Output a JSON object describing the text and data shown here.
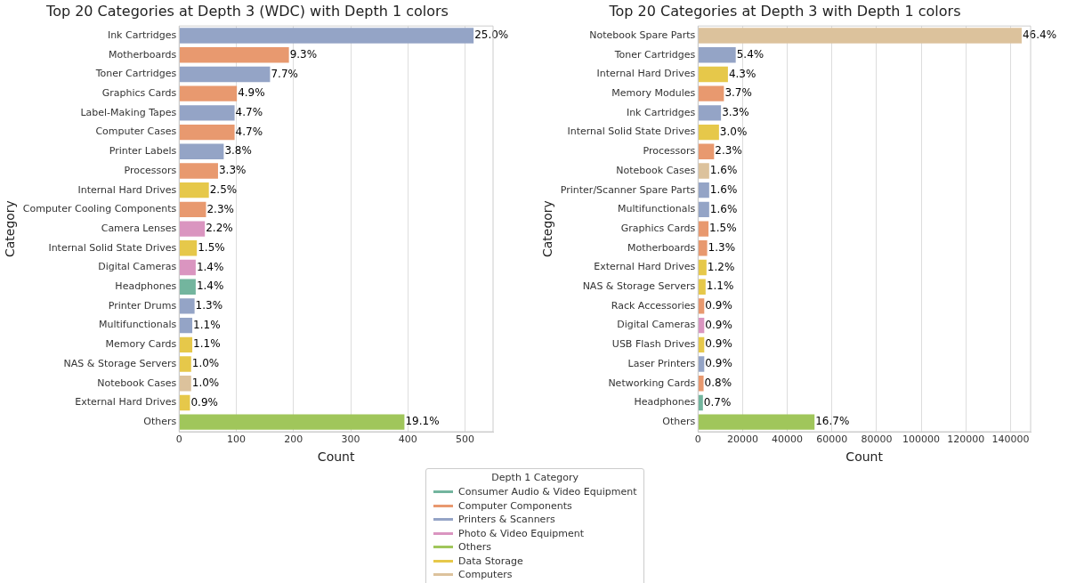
{
  "chart_data": [
    {
      "type": "bar",
      "orientation": "horizontal",
      "title": "Top 20 Categories at Depth 3 (WDC) with Depth 1 colors",
      "xlabel": "Count",
      "ylabel": "Category",
      "legend_title": "Depth 1 Category",
      "legend": "bottom",
      "grid": "x",
      "xlim": [
        0,
        549
      ],
      "xticks": [
        0,
        100,
        200,
        300,
        400,
        500
      ],
      "categories": [
        "Ink Cartridges",
        "Motherboards",
        "Toner Cartridges",
        "Graphics Cards",
        "Label-Making Tapes",
        "Computer Cases",
        "Printer Labels",
        "Processors",
        "Internal Hard Drives",
        "Computer Cooling Components",
        "Camera Lenses",
        "Internal Solid State Drives",
        "Digital Cameras",
        "Headphones",
        "Printer Drums",
        "Multifunctionals",
        "Memory Cards",
        "NAS & Storage Servers",
        "Notebook Cases",
        "External Hard Drives",
        "Others"
      ],
      "series": [
        {
          "name": "Consumer Audio & Video Equipment",
          "color": "#73b59e",
          "values": [
            null,
            null,
            null,
            null,
            null,
            null,
            null,
            null,
            null,
            null,
            null,
            null,
            null,
            29,
            null,
            null,
            null,
            null,
            null,
            null,
            null
          ]
        },
        {
          "name": "Computer Components",
          "color": "#e8996f",
          "values": [
            null,
            192,
            null,
            101,
            null,
            97,
            null,
            68,
            null,
            47,
            null,
            null,
            null,
            null,
            null,
            null,
            null,
            null,
            null,
            null,
            null
          ]
        },
        {
          "name": "Printers & Scanners",
          "color": "#94a4c6",
          "values": [
            515,
            null,
            159,
            null,
            97,
            null,
            78,
            null,
            null,
            null,
            null,
            null,
            null,
            null,
            27,
            23,
            null,
            null,
            null,
            null,
            null
          ]
        },
        {
          "name": "Photo & Video Equipment",
          "color": "#da95c0",
          "values": [
            null,
            null,
            null,
            null,
            null,
            null,
            null,
            null,
            null,
            null,
            45,
            null,
            29,
            null,
            null,
            null,
            null,
            null,
            null,
            null,
            null
          ]
        },
        {
          "name": "Others",
          "color": "#a0c65b",
          "values": [
            null,
            null,
            null,
            null,
            null,
            null,
            null,
            null,
            null,
            null,
            null,
            null,
            null,
            null,
            null,
            null,
            null,
            null,
            null,
            null,
            394
          ]
        },
        {
          "name": "Data Storage",
          "color": "#e6c84a",
          "values": [
            null,
            null,
            null,
            null,
            null,
            null,
            null,
            null,
            52,
            null,
            null,
            31,
            null,
            null,
            null,
            null,
            23,
            21,
            null,
            19,
            null
          ]
        },
        {
          "name": "Computers",
          "color": "#dcc29c",
          "values": [
            null,
            null,
            null,
            null,
            null,
            null,
            null,
            null,
            null,
            null,
            null,
            null,
            null,
            null,
            null,
            null,
            null,
            null,
            21,
            null,
            null
          ]
        }
      ],
      "annotations": [
        {
          "text": "25.0%",
          "x": 515,
          "y": "Ink Cartridges"
        },
        {
          "text": "9.3%",
          "x": 192,
          "y": "Motherboards"
        },
        {
          "text": "7.7%",
          "x": 159,
          "y": "Toner Cartridges"
        },
        {
          "text": "4.9%",
          "x": 101,
          "y": "Graphics Cards"
        },
        {
          "text": "4.7%",
          "x": 97,
          "y": "Label-Making Tapes"
        },
        {
          "text": "4.7%",
          "x": 97,
          "y": "Computer Cases"
        },
        {
          "text": "3.8%",
          "x": 78,
          "y": "Printer Labels"
        },
        {
          "text": "3.3%",
          "x": 68,
          "y": "Processors"
        },
        {
          "text": "2.5%",
          "x": 52,
          "y": "Internal Hard Drives"
        },
        {
          "text": "2.3%",
          "x": 47,
          "y": "Computer Cooling Components"
        },
        {
          "text": "2.2%",
          "x": 45,
          "y": "Camera Lenses"
        },
        {
          "text": "1.5%",
          "x": 31,
          "y": "Internal Solid State Drives"
        },
        {
          "text": "1.4%",
          "x": 29,
          "y": "Digital Cameras"
        },
        {
          "text": "1.4%",
          "x": 29,
          "y": "Headphones"
        },
        {
          "text": "1.3%",
          "x": 27,
          "y": "Printer Drums"
        },
        {
          "text": "1.1%",
          "x": 23,
          "y": "Multifunctionals"
        },
        {
          "text": "1.1%",
          "x": 23,
          "y": "Memory Cards"
        },
        {
          "text": "1.0%",
          "x": 21,
          "y": "NAS & Storage Servers"
        },
        {
          "text": "1.0%",
          "x": 21,
          "y": "Notebook Cases"
        },
        {
          "text": "0.9%",
          "x": 19,
          "y": "External Hard Drives"
        },
        {
          "text": "19.1%",
          "x": 394,
          "y": "Others"
        }
      ]
    },
    {
      "type": "bar",
      "orientation": "horizontal",
      "title": "Top 20 Categories at Depth 3 with Depth 1 colors",
      "xlabel": "Count",
      "ylabel": "Category",
      "grid": "x",
      "xlim": [
        0,
        149000
      ],
      "xticks": [
        0,
        20000,
        40000,
        60000,
        80000,
        100000,
        120000,
        140000
      ],
      "categories": [
        "Notebook Spare Parts",
        "Toner Cartridges",
        "Internal Hard Drives",
        "Memory Modules",
        "Ink Cartridges",
        "Internal Solid State Drives",
        "Processors",
        "Notebook Cases",
        "Printer/Scanner Spare Parts",
        "Multifunctionals",
        "Graphics Cards",
        "Motherboards",
        "External Hard Drives",
        "NAS & Storage Servers",
        "Rack Accessories",
        "Digital Cameras",
        "USB Flash Drives",
        "Laser Printers",
        "Networking Cards",
        "Headphones",
        "Others"
      ],
      "series": [
        {
          "color": "#73b59e",
          "values": [
            null,
            null,
            null,
            null,
            null,
            null,
            null,
            null,
            null,
            null,
            null,
            null,
            null,
            null,
            null,
            null,
            null,
            null,
            null,
            2200,
            null
          ]
        },
        {
          "color": "#e8996f",
          "values": [
            null,
            null,
            null,
            11600,
            null,
            null,
            7200,
            null,
            null,
            null,
            4700,
            4100,
            null,
            null,
            2800,
            null,
            null,
            null,
            2500,
            null,
            null
          ]
        },
        {
          "color": "#94a4c6",
          "values": [
            null,
            16900,
            null,
            null,
            10300,
            null,
            null,
            null,
            5000,
            5000,
            null,
            null,
            null,
            null,
            null,
            null,
            null,
            2800,
            null,
            null,
            null
          ]
        },
        {
          "color": "#da95c0",
          "values": [
            null,
            null,
            null,
            null,
            null,
            null,
            null,
            null,
            null,
            null,
            null,
            null,
            null,
            null,
            null,
            2800,
            null,
            null,
            null,
            null,
            null
          ]
        },
        {
          "color": "#a0c65b",
          "values": [
            null,
            null,
            null,
            null,
            null,
            null,
            null,
            null,
            null,
            null,
            null,
            null,
            null,
            null,
            null,
            null,
            null,
            null,
            null,
            null,
            52200
          ]
        },
        {
          "color": "#e6c84a",
          "values": [
            null,
            null,
            13400,
            null,
            null,
            9400,
            null,
            null,
            null,
            null,
            null,
            null,
            3800,
            3400,
            null,
            null,
            2800,
            null,
            null,
            null,
            null
          ]
        },
        {
          "color": "#dcc29c",
          "values": [
            145000,
            null,
            null,
            null,
            null,
            null,
            null,
            5000,
            null,
            null,
            null,
            null,
            null,
            null,
            null,
            null,
            null,
            null,
            null,
            null,
            null
          ]
        }
      ],
      "annotations": [
        {
          "text": "46.4%",
          "x": 145000,
          "y": "Notebook Spare Parts"
        },
        {
          "text": "5.4%",
          "x": 16900,
          "y": "Toner Cartridges"
        },
        {
          "text": "4.3%",
          "x": 13400,
          "y": "Internal Hard Drives"
        },
        {
          "text": "3.7%",
          "x": 11600,
          "y": "Memory Modules"
        },
        {
          "text": "3.3%",
          "x": 10300,
          "y": "Ink Cartridges"
        },
        {
          "text": "3.0%",
          "x": 9400,
          "y": "Internal Solid State Drives"
        },
        {
          "text": "2.3%",
          "x": 7200,
          "y": "Processors"
        },
        {
          "text": "1.6%",
          "x": 5000,
          "y": "Notebook Cases"
        },
        {
          "text": "1.6%",
          "x": 5000,
          "y": "Printer/Scanner Spare Parts"
        },
        {
          "text": "1.6%",
          "x": 5000,
          "y": "Multifunctionals"
        },
        {
          "text": "1.5%",
          "x": 4700,
          "y": "Graphics Cards"
        },
        {
          "text": "1.3%",
          "x": 4100,
          "y": "Motherboards"
        },
        {
          "text": "1.2%",
          "x": 3800,
          "y": "External Hard Drives"
        },
        {
          "text": "1.1%",
          "x": 3400,
          "y": "NAS & Storage Servers"
        },
        {
          "text": "0.9%",
          "x": 2800,
          "y": "Rack Accessories"
        },
        {
          "text": "0.9%",
          "x": 2800,
          "y": "Digital Cameras"
        },
        {
          "text": "0.9%",
          "x": 2800,
          "y": "USB Flash Drives"
        },
        {
          "text": "0.9%",
          "x": 2800,
          "y": "Laser Printers"
        },
        {
          "text": "0.8%",
          "x": 2500,
          "y": "Networking Cards"
        },
        {
          "text": "0.7%",
          "x": 2200,
          "y": "Headphones"
        },
        {
          "text": "16.7%",
          "x": 52200,
          "y": "Others"
        }
      ]
    }
  ]
}
